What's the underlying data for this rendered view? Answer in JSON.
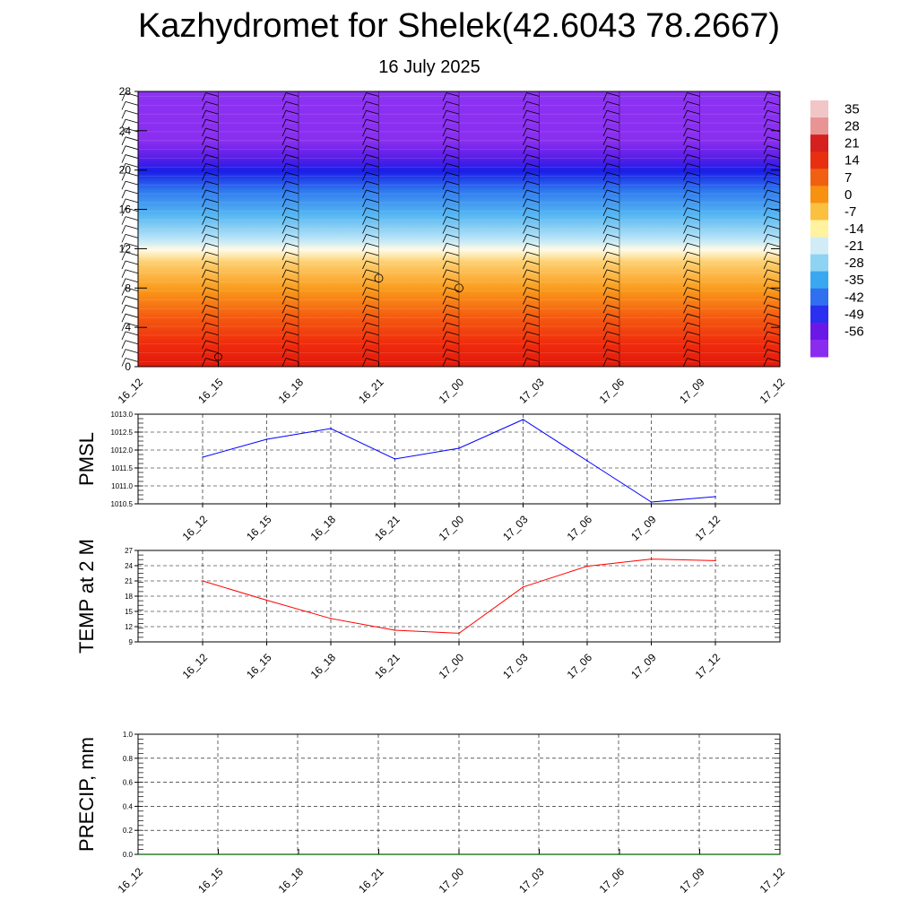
{
  "title": "Kazhydromet for Shelek(42.6043 78.2667)",
  "subtitle": "16 July 2025",
  "chart_data": [
    {
      "type": "heatmap",
      "name": "temperature cross-section",
      "x_ticks": [
        "16_12",
        "16_15",
        "16_18",
        "16_21",
        "17_00",
        "17_03",
        "17_06",
        "17_09",
        "17_12"
      ],
      "y_ticks": [
        0,
        4,
        8,
        12,
        16,
        20,
        24,
        28
      ],
      "ylim": [
        0,
        28
      ],
      "colorbar_levels": [
        35,
        28,
        21,
        14,
        7,
        0,
        -7,
        -14,
        -21,
        -28,
        -35,
        -42,
        -49,
        -56
      ],
      "colorbar_colors": [
        "#f2c6c6",
        "#e89494",
        "#d62020",
        "#e83010",
        "#f06010",
        "#f89010",
        "#fbc040",
        "#fff3a0",
        "#d2ecf7",
        "#8fd3f3",
        "#3aa8f0",
        "#2f6ff0",
        "#2a2ff0",
        "#6a18e8",
        "#8a2cf0"
      ],
      "wind_barbs": "yes",
      "grid": false
    },
    {
      "type": "line",
      "ylabel": "PMSL",
      "x": [
        "16_12",
        "16_15",
        "16_18",
        "16_21",
        "17_00",
        "17_03",
        "17_06",
        "17_09",
        "17_12"
      ],
      "y_ticks": [
        "1010.5",
        "1011.0",
        "1011.5",
        "1012.0",
        "1012.5",
        "1013.0"
      ],
      "ylim": [
        1010.5,
        1013.0
      ],
      "series": [
        {
          "values": [
            1011.8,
            1012.3,
            1012.6,
            1011.75,
            1012.05,
            1012.85,
            1011.7,
            1010.55,
            1010.7
          ],
          "color": "#0000ff"
        }
      ],
      "grid": true
    },
    {
      "type": "line",
      "ylabel": "TEMP at 2 M",
      "x": [
        "16_12",
        "16_15",
        "16_18",
        "16_21",
        "17_00",
        "17_03",
        "17_06",
        "17_09",
        "17_12"
      ],
      "y_ticks": [
        "9",
        "12",
        "15",
        "18",
        "21",
        "24",
        "27"
      ],
      "ylim": [
        9,
        27
      ],
      "series": [
        {
          "values": [
            21.0,
            17.2,
            13.6,
            11.3,
            10.7,
            19.8,
            23.9,
            25.3,
            25.0
          ],
          "color": "#ff0000"
        }
      ],
      "grid": true
    },
    {
      "type": "line",
      "ylabel": "PRECIP, mm",
      "x": [
        "16_12",
        "16_15",
        "16_18",
        "16_21",
        "17_00",
        "17_03",
        "17_06",
        "17_09",
        "17_12"
      ],
      "y_ticks": [
        "0.0",
        "0.2",
        "0.4",
        "0.6",
        "0.8",
        "1.0"
      ],
      "ylim": [
        0,
        1
      ],
      "series": [
        {
          "values": [
            0,
            0,
            0,
            0,
            0,
            0,
            0,
            0,
            0
          ],
          "color": "#006400"
        }
      ],
      "grid": true
    }
  ]
}
